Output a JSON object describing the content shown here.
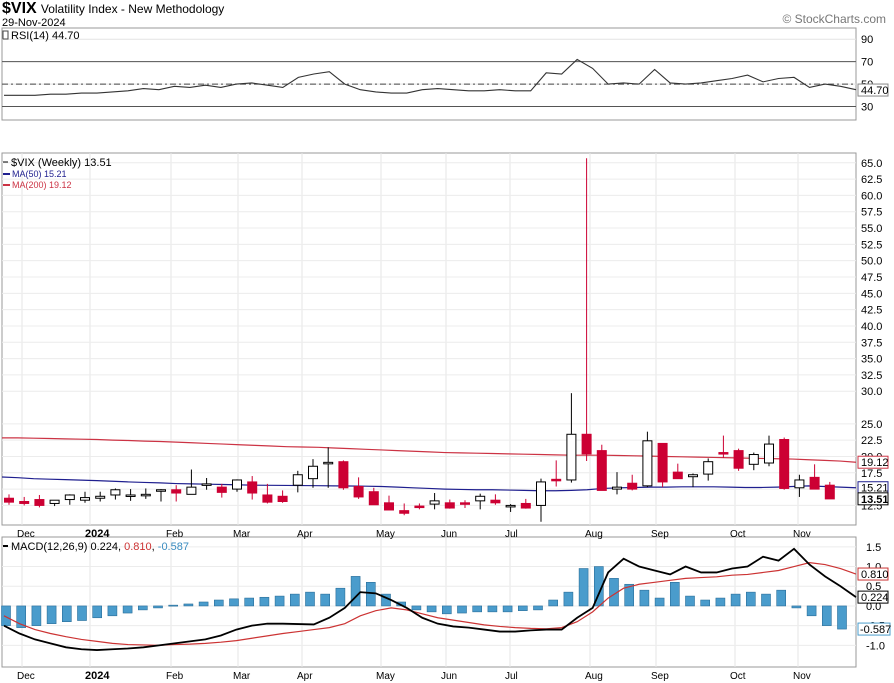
{
  "header": {
    "symbol": "$VIX",
    "name": "Volatility Index - New Methodology",
    "date": "29-Nov-2024",
    "brand": "© StockCharts.com"
  },
  "colors": {
    "up": "#000000",
    "down": "#cc0033",
    "ma50": "#1f1f8f",
    "ma200": "#cc3344",
    "macd": "#000000",
    "signal": "#cc3333",
    "hist": "#4a9ccc"
  },
  "chart_data": [
    {
      "type": "line",
      "panel": "rsi",
      "legend": "RSI(14) 44.70",
      "label_value": "44.70",
      "ylim": [
        18,
        100
      ],
      "yticks": [
        90,
        70,
        50,
        30
      ],
      "hlines": [
        70,
        50,
        30
      ],
      "values": [
        40,
        40,
        40,
        41,
        41,
        42,
        42,
        43,
        44,
        46,
        45,
        48,
        47,
        49,
        47,
        50,
        51,
        49,
        47,
        56,
        59,
        61,
        50,
        45,
        43,
        42,
        42,
        45,
        46,
        45,
        44,
        44,
        45,
        44,
        44,
        60,
        59,
        72,
        64,
        50,
        51,
        50,
        63,
        51,
        50,
        51,
        53,
        55,
        58,
        52,
        55,
        56,
        47,
        50,
        48,
        45
      ]
    },
    {
      "type": "candlestick",
      "panel": "price",
      "legend": [
        "$VIX (Weekly) 13.51",
        "MA(50) 15.21",
        "MA(200) 19.12"
      ],
      "label_values": {
        "ma200": "19.12",
        "ma50": "15.21",
        "last": "13.51"
      },
      "ylim": [
        9.5,
        66.5
      ],
      "yticks": [
        65.0,
        62.5,
        60.0,
        57.5,
        55.0,
        52.5,
        50.0,
        47.5,
        45.0,
        42.5,
        40.0,
        37.5,
        35.0,
        32.5,
        30.0,
        25.0,
        22.5,
        20.0,
        17.5,
        15.0,
        12.5
      ],
      "xlabels": [
        "Dec",
        "2024",
        "Feb",
        "Mar",
        "Apr",
        "May",
        "Jun",
        "Jul",
        "Aug",
        "Sep",
        "Oct",
        "Nov"
      ],
      "candles": [
        [
          13.6,
          14.2,
          12.6,
          13.0
        ],
        [
          13.1,
          13.8,
          12.5,
          12.8
        ],
        [
          13.4,
          14.1,
          12.2,
          12.5
        ],
        [
          12.8,
          13.3,
          12.4,
          13.3
        ],
        [
          13.4,
          14.2,
          12.6,
          14.1
        ],
        [
          13.3,
          14.6,
          12.9,
          13.7
        ],
        [
          13.6,
          14.6,
          13.1,
          13.9
        ],
        [
          14.1,
          15.1,
          13.4,
          14.9
        ],
        [
          13.9,
          15.0,
          13.2,
          14.1
        ],
        [
          14.2,
          15.1,
          13.5,
          14.2
        ],
        [
          14.8,
          15.0,
          13.1,
          14.9
        ],
        [
          14.9,
          15.6,
          13.1,
          14.4
        ],
        [
          14.2,
          18.0,
          14.2,
          15.3
        ],
        [
          15.6,
          16.7,
          14.9,
          15.8
        ],
        [
          15.3,
          15.8,
          13.7,
          14.5
        ],
        [
          15.0,
          16.5,
          14.6,
          16.4
        ],
        [
          16.1,
          17.0,
          13.4,
          14.4
        ],
        [
          14.1,
          15.8,
          12.8,
          13.0
        ],
        [
          13.9,
          14.8,
          12.9,
          13.1
        ],
        [
          15.6,
          17.8,
          14.5,
          17.2
        ],
        [
          16.6,
          19.6,
          15.2,
          18.5
        ],
        [
          19.0,
          21.4,
          15.2,
          19.1
        ],
        [
          19.2,
          19.4,
          14.9,
          15.2
        ],
        [
          15.4,
          16.8,
          13.5,
          13.8
        ],
        [
          14.6,
          15.2,
          12.6,
          12.6
        ],
        [
          12.9,
          14.0,
          11.8,
          11.8
        ],
        [
          11.7,
          12.8,
          11.0,
          11.3
        ],
        [
          12.4,
          12.8,
          11.9,
          12.2
        ],
        [
          12.7,
          14.4,
          11.9,
          13.2
        ],
        [
          12.9,
          13.4,
          12.0,
          12.1
        ],
        [
          12.9,
          13.3,
          12.1,
          12.8
        ],
        [
          13.2,
          14.3,
          11.9,
          13.9
        ],
        [
          13.3,
          14.2,
          12.6,
          12.9
        ],
        [
          12.4,
          12.7,
          11.5,
          12.5
        ],
        [
          12.8,
          13.5,
          12.0,
          12.1
        ],
        [
          12.5,
          16.6,
          10.0,
          16.1
        ],
        [
          16.5,
          19.4,
          15.4,
          16.3
        ],
        [
          16.4,
          29.7,
          16.0,
          23.4
        ],
        [
          23.4,
          65.7,
          19.3,
          20.4
        ],
        [
          20.9,
          21.8,
          14.8,
          14.8
        ],
        [
          15.0,
          17.6,
          14.2,
          15.3
        ],
        [
          15.9,
          17.2,
          14.8,
          15.0
        ],
        [
          15.5,
          23.8,
          15.3,
          22.4
        ],
        [
          22.0,
          22.0,
          15.3,
          16.1
        ],
        [
          17.6,
          18.9,
          16.6,
          16.6
        ],
        [
          16.9,
          17.4,
          15.3,
          17.2
        ],
        [
          17.3,
          19.7,
          16.3,
          19.2
        ],
        [
          20.6,
          23.2,
          19.8,
          20.5
        ],
        [
          20.9,
          21.2,
          17.8,
          18.2
        ],
        [
          18.8,
          20.6,
          17.9,
          20.3
        ],
        [
          19.0,
          23.2,
          18.5,
          21.9
        ],
        [
          22.6,
          22.9,
          14.9,
          15.1
        ],
        [
          15.2,
          17.2,
          13.8,
          16.4
        ],
        [
          16.8,
          18.8,
          15.0,
          15.0
        ],
        [
          15.6,
          16.1,
          13.5,
          13.5
        ]
      ],
      "ma50": [
        16.85,
        16.75,
        16.6,
        16.52,
        16.45,
        16.38,
        16.3,
        16.2,
        16.1,
        16.02,
        15.95,
        15.85,
        15.8,
        15.75,
        15.7,
        15.65,
        15.6,
        15.58,
        15.56,
        15.54,
        15.52,
        15.5,
        15.48,
        15.45,
        15.4,
        15.3,
        15.2,
        15.1,
        15.0,
        14.95,
        14.9,
        14.9,
        14.85,
        14.8,
        14.75,
        14.75,
        14.8,
        14.9,
        15.1,
        15.2,
        15.25,
        15.3,
        15.3,
        15.35,
        15.35,
        15.35,
        15.3,
        15.25,
        15.25,
        15.3,
        15.4,
        15.5,
        15.4,
        15.3,
        15.21
      ],
      "ma200": [
        22.85,
        22.85,
        22.8,
        22.75,
        22.7,
        22.65,
        22.6,
        22.5,
        22.45,
        22.35,
        22.3,
        22.2,
        22.1,
        22.0,
        21.9,
        21.8,
        21.7,
        21.6,
        21.5,
        21.45,
        21.4,
        21.3,
        21.2,
        21.1,
        21.0,
        20.9,
        20.8,
        20.7,
        20.6,
        20.55,
        20.5,
        20.45,
        20.4,
        20.35,
        20.3,
        20.25,
        20.2,
        20.2,
        20.2,
        20.15,
        20.1,
        20.05,
        20.0,
        19.95,
        19.9,
        19.85,
        19.8,
        19.75,
        19.7,
        19.65,
        19.6,
        19.5,
        19.4,
        19.3,
        19.12
      ]
    },
    {
      "type": "line",
      "panel": "macd",
      "legend": {
        "main": "MACD(12,26,9)",
        "macd": "0.224",
        "signal": "0.810",
        "hist": "-0.587"
      },
      "label_values": {
        "signal": "0.810",
        "macd": "0.224",
        "hist": "-0.587"
      },
      "ylim": [
        -1.55,
        1.75
      ],
      "yticks": [
        1.5,
        1.0,
        0.5,
        0.0,
        -0.5,
        -1.0
      ],
      "macd": [
        -0.5,
        -0.7,
        -0.85,
        -0.95,
        -1.05,
        -1.1,
        -1.12,
        -1.1,
        -1.08,
        -1.05,
        -1.0,
        -0.95,
        -0.9,
        -0.85,
        -0.75,
        -0.6,
        -0.5,
        -0.45,
        -0.45,
        -0.46,
        -0.47,
        -0.3,
        -0.05,
        0.35,
        0.32,
        0.15,
        -0.05,
        -0.3,
        -0.45,
        -0.52,
        -0.55,
        -0.6,
        -0.65,
        -0.65,
        -0.62,
        -0.6,
        -0.6,
        -0.3,
        -0.05,
        0.85,
        1.2,
        1.0,
        0.9,
        0.8,
        1.0,
        0.85,
        0.85,
        0.95,
        1.0,
        1.25,
        1.15,
        1.45,
        1.05,
        0.75,
        0.5,
        0.224
      ],
      "signal": [
        -0.25,
        -0.45,
        -0.6,
        -0.7,
        -0.78,
        -0.85,
        -0.9,
        -0.95,
        -0.98,
        -0.99,
        -1.0,
        -0.98,
        -0.97,
        -0.95,
        -0.92,
        -0.88,
        -0.82,
        -0.76,
        -0.7,
        -0.65,
        -0.6,
        -0.55,
        -0.45,
        -0.25,
        -0.12,
        -0.05,
        -0.1,
        -0.2,
        -0.3,
        -0.36,
        -0.42,
        -0.48,
        -0.52,
        -0.55,
        -0.57,
        -0.58,
        -0.55,
        -0.4,
        -0.15,
        0.2,
        0.45,
        0.55,
        0.6,
        0.65,
        0.7,
        0.72,
        0.74,
        0.78,
        0.8,
        0.85,
        0.9,
        1.0,
        1.1,
        1.05,
        0.95,
        0.81
      ],
      "hist": [
        -0.5,
        -0.55,
        -0.5,
        -0.45,
        -0.4,
        -0.37,
        -0.3,
        -0.25,
        -0.18,
        -0.1,
        -0.05,
        0.02,
        0.05,
        0.1,
        0.15,
        0.18,
        0.2,
        0.22,
        0.25,
        0.3,
        0.35,
        0.3,
        0.45,
        0.75,
        0.6,
        0.3,
        0.1,
        -0.1,
        -0.15,
        -0.2,
        -0.18,
        -0.15,
        -0.15,
        -0.15,
        -0.12,
        -0.1,
        0.15,
        0.35,
        0.95,
        1.0,
        0.7,
        0.55,
        0.4,
        0.2,
        0.6,
        0.25,
        0.15,
        0.2,
        0.3,
        0.35,
        0.3,
        0.4,
        -0.05,
        -0.25,
        -0.5,
        -0.587
      ]
    }
  ]
}
